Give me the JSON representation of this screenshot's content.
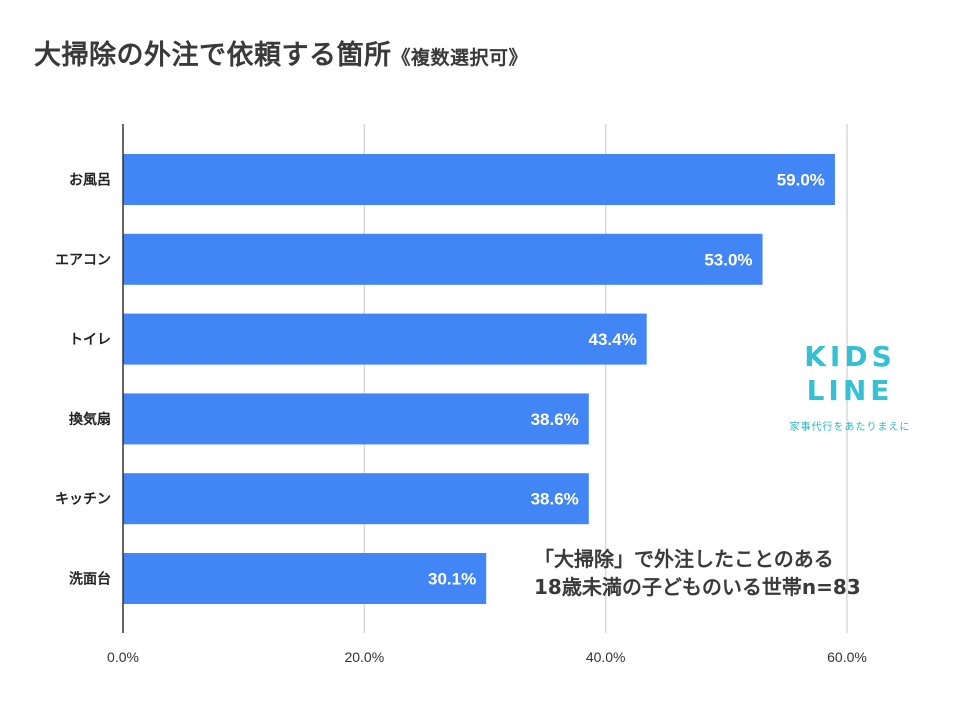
{
  "title": {
    "main": "大掃除の外注で依頼する箇所",
    "sub": "《複数選択可》"
  },
  "note": {
    "line1": "「大掃除」で外注したことのある",
    "line2": "18歳未満の子どものいる世帯n=83"
  },
  "logo": {
    "line1": "KIDS",
    "line2": "LINE",
    "tagline": "家事代行をあたりまえに"
  },
  "colors": {
    "bar": "#4285f4",
    "bar_label": "#ffffff",
    "grid": "#d9d9d9",
    "axis": "#333333",
    "logo": "#36c0d3"
  },
  "chart_data": {
    "type": "bar",
    "orientation": "horizontal",
    "categories": [
      "お風呂",
      "エアコン",
      "トイレ",
      "換気扇",
      "キッチン",
      "洗面台"
    ],
    "values": [
      59.0,
      53.0,
      43.4,
      38.6,
      38.6,
      30.1
    ],
    "value_labels": [
      "59.0%",
      "53.0%",
      "43.4%",
      "38.6%",
      "38.6%",
      "30.1%"
    ],
    "x_ticks": [
      0,
      20,
      40,
      60
    ],
    "x_tick_labels": [
      "0.0%",
      "20.0%",
      "40.0%",
      "60.0%"
    ],
    "xlim": [
      0,
      60
    ],
    "grid": true
  }
}
